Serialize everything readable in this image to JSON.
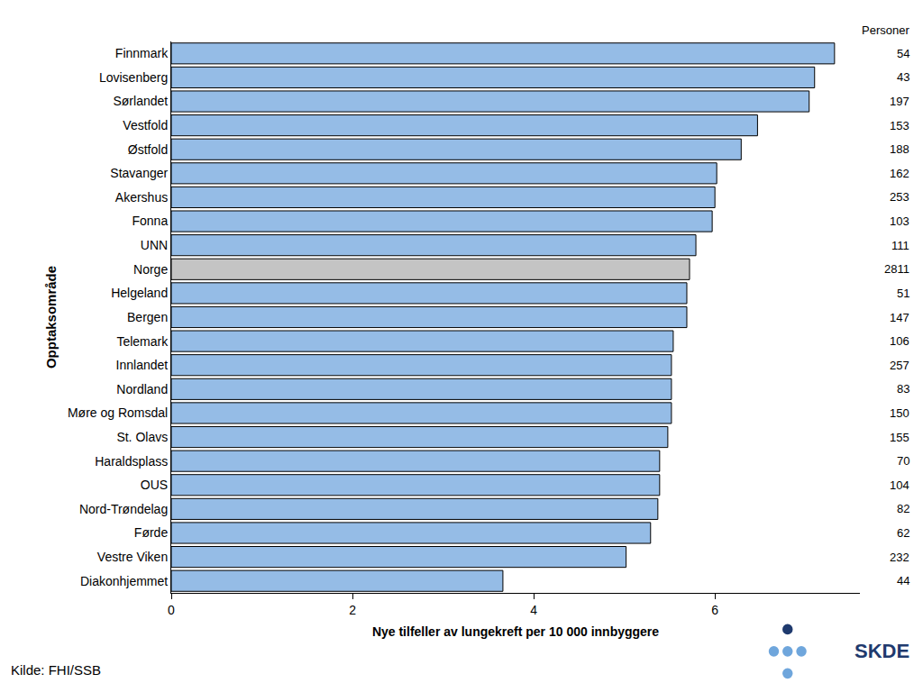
{
  "chart_data": {
    "type": "bar",
    "orientation": "horizontal",
    "xlabel": "Nye tilfeller av lungekreft per 10 000 innbyggere",
    "ylabel": "Opptaksområde",
    "categories": [
      "Finnmark",
      "Lovisenberg",
      "Sørlandet",
      "Vestfold",
      "Østfold",
      "Stavanger",
      "Akershus",
      "Fonna",
      "UNN",
      "Norge",
      "Helgeland",
      "Bergen",
      "Telemark",
      "Innlandet",
      "Nordland",
      "Møre og Romsdal",
      "St. Olavs",
      "Haraldsplass",
      "OUS",
      "Nord-Trøndelag",
      "Førde",
      "Vestre Viken",
      "Diakonhjemmet"
    ],
    "values": [
      7.32,
      7.1,
      7.04,
      6.47,
      6.29,
      6.02,
      6.0,
      5.97,
      5.79,
      5.72,
      5.69,
      5.69,
      5.54,
      5.52,
      5.52,
      5.52,
      5.48,
      5.39,
      5.39,
      5.37,
      5.29,
      5.02,
      3.66
    ],
    "colors": [
      "#95bce6",
      "#95bce6",
      "#95bce6",
      "#95bce6",
      "#95bce6",
      "#95bce6",
      "#95bce6",
      "#95bce6",
      "#95bce6",
      "#c4c4c4",
      "#95bce6",
      "#95bce6",
      "#95bce6",
      "#95bce6",
      "#95bce6",
      "#95bce6",
      "#95bce6",
      "#95bce6",
      "#95bce6",
      "#95bce6",
      "#95bce6",
      "#95bce6",
      "#95bce6"
    ],
    "counts_title": "Personer",
    "counts": [
      54,
      43,
      197,
      153,
      188,
      162,
      253,
      103,
      111,
      2811,
      51,
      147,
      106,
      257,
      83,
      150,
      155,
      70,
      104,
      82,
      62,
      232,
      44
    ],
    "xlim": [
      0,
      7.6
    ],
    "xticks": [
      0,
      2,
      4,
      6
    ],
    "grid": false,
    "source": "Kilde: FHI/SSB",
    "logo": "SKDE"
  }
}
